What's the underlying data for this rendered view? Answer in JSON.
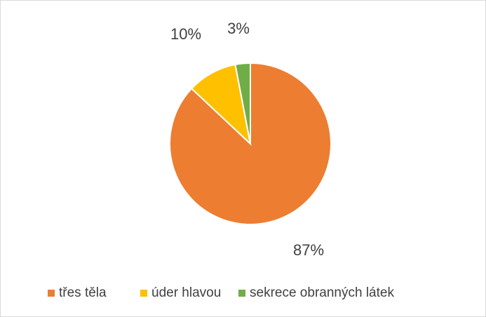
{
  "chart_data": {
    "type": "pie",
    "categories": [
      "třes těla",
      "úder hlavou",
      "sekrece obranných látek"
    ],
    "values": [
      87,
      10,
      3
    ],
    "value_labels": [
      "87%",
      "10%",
      "3%"
    ],
    "colors": [
      "#ed7d31",
      "#ffc000",
      "#70ad47"
    ],
    "legend": "bottom"
  }
}
